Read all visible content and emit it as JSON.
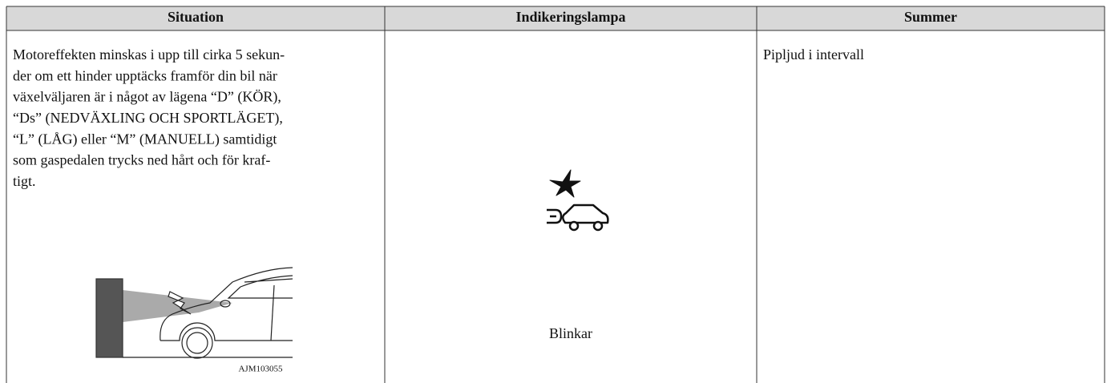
{
  "table": {
    "headers": [
      "Situation",
      "Indikeringslampa",
      "Summer"
    ],
    "rows": [
      {
        "situation": [
          "Motoreffekten minskas i upp till cirka 5 sekun-",
          "der om ett hinder upptäcks framför din bil när",
          "växelväljaren är i något av lägena “D” (KÖR),",
          "“Ds” (NEDVÄXLING OCH SPORTLÄGET),",
          "“L” (LÅG) eller “M” (MANUELL) samtidigt",
          "som gaspedalen trycks ned hårt och för kraf-",
          "tigt."
        ],
        "figure_label": "AJM103055",
        "indicator": "Blinkar",
        "buzzer": "Pipljud i intervall"
      }
    ]
  }
}
